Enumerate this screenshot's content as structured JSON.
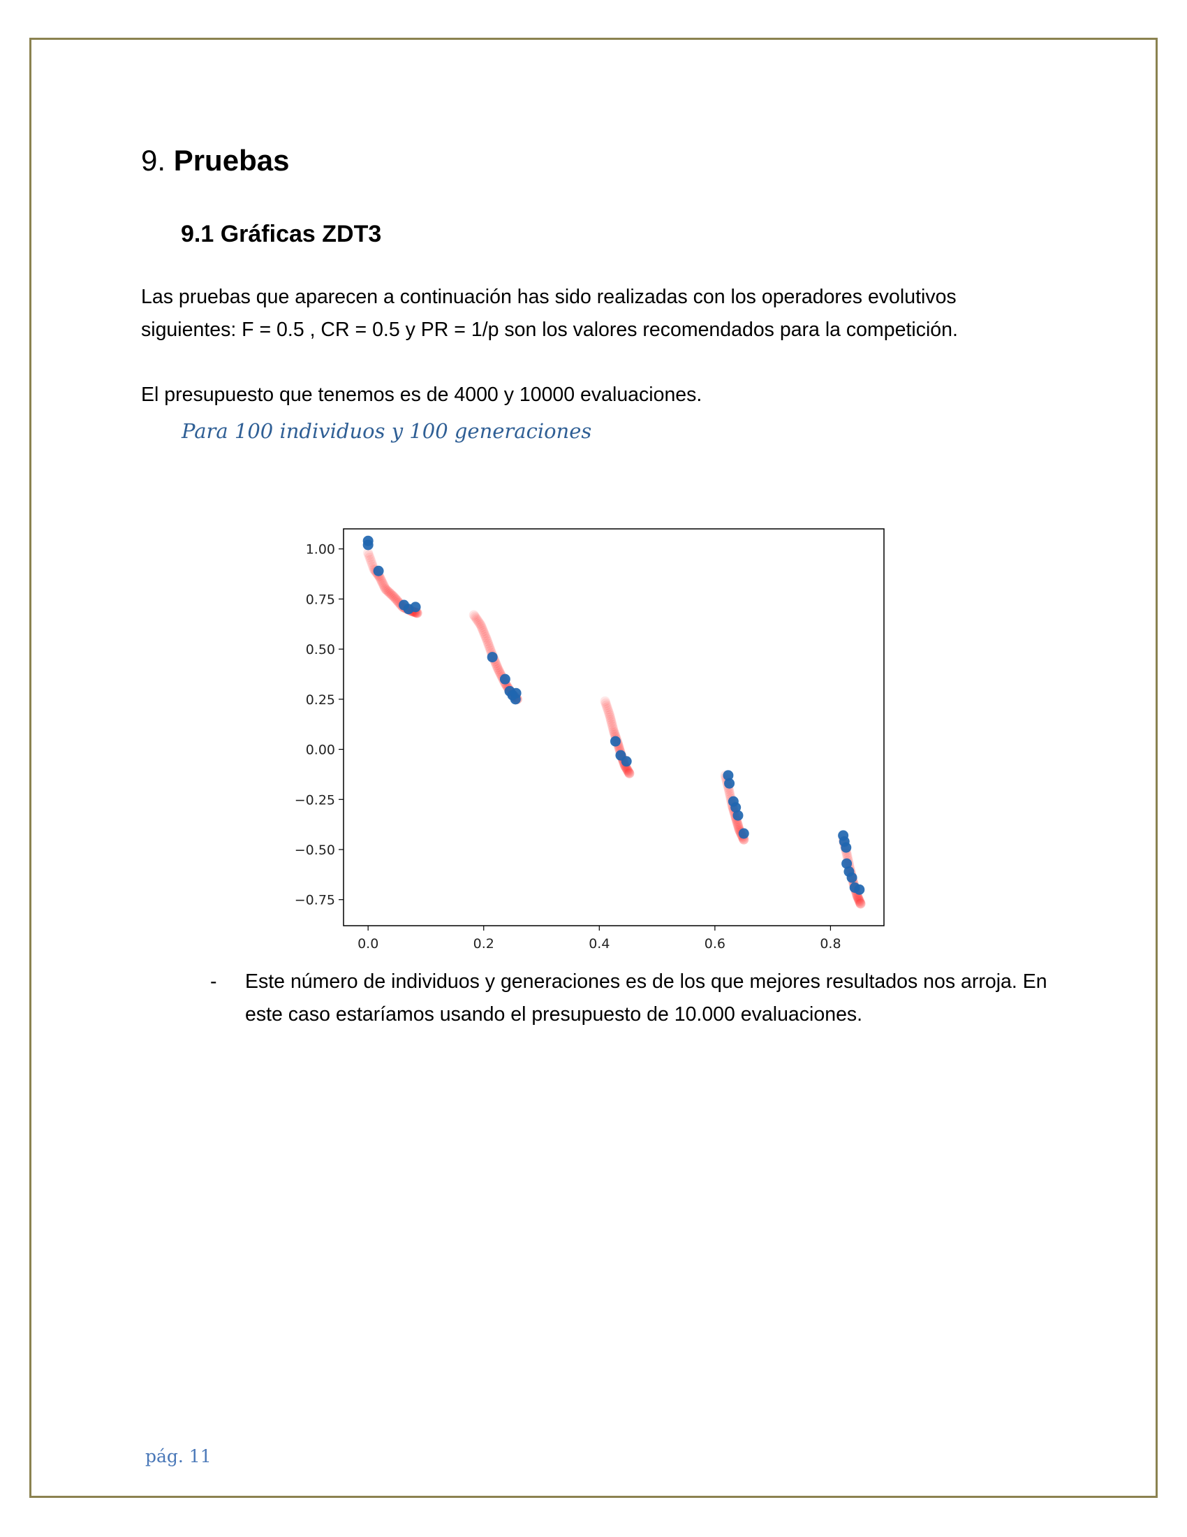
{
  "section": {
    "number": "9.",
    "title": "Pruebas"
  },
  "subsection": {
    "title": "9.1 Gráficas ZDT3"
  },
  "paragraphs": [
    "Las pruebas que aparecen a continuación has sido realizadas con los operadores evolutivos siguientes: F = 0.5 , CR = 0.5 y PR = 1/p son los valores recomendados para la competición.",
    "El presupuesto que tenemos es de 4000 y 10000 evaluaciones."
  ],
  "caption": "Para 100 individuos y 100 generaciones",
  "chart_data": {
    "type": "scatter",
    "title": "",
    "xlabel": "",
    "ylabel": "",
    "xlim": [
      -0.0425,
      0.8925
    ],
    "ylim": [
      -0.88,
      1.1
    ],
    "x_ticks": [
      "0.0",
      "0.2",
      "0.4",
      "0.6",
      "0.8"
    ],
    "y_ticks": [
      "1.00",
      "0.75",
      "0.50",
      "0.25",
      "0.00",
      "−0.25",
      "−0.50",
      "−0.75"
    ],
    "grid": false,
    "series": [
      {
        "color": "#ff2020",
        "style": "translucent-dense-front",
        "segments": [
          [
            [
              0.0,
              0.98
            ],
            [
              0.01,
              0.9
            ],
            [
              0.02,
              0.86
            ],
            [
              0.03,
              0.8
            ],
            [
              0.045,
              0.76
            ],
            [
              0.06,
              0.71
            ],
            [
              0.075,
              0.69
            ],
            [
              0.085,
              0.68
            ]
          ],
          [
            [
              0.183,
              0.67
            ],
            [
              0.195,
              0.62
            ],
            [
              0.205,
              0.55
            ],
            [
              0.215,
              0.47
            ],
            [
              0.225,
              0.4
            ],
            [
              0.237,
              0.33
            ],
            [
              0.248,
              0.28
            ],
            [
              0.258,
              0.25
            ]
          ],
          [
            [
              0.41,
              0.24
            ],
            [
              0.418,
              0.17
            ],
            [
              0.425,
              0.09
            ],
            [
              0.432,
              0.03
            ],
            [
              0.438,
              -0.03
            ],
            [
              0.444,
              -0.08
            ],
            [
              0.452,
              -0.12
            ]
          ],
          [
            [
              0.618,
              -0.13
            ],
            [
              0.624,
              -0.2
            ],
            [
              0.63,
              -0.28
            ],
            [
              0.636,
              -0.34
            ],
            [
              0.642,
              -0.4
            ],
            [
              0.65,
              -0.45
            ]
          ],
          [
            [
              0.822,
              -0.45
            ],
            [
              0.828,
              -0.52
            ],
            [
              0.834,
              -0.6
            ],
            [
              0.84,
              -0.67
            ],
            [
              0.846,
              -0.73
            ],
            [
              0.852,
              -0.77
            ]
          ]
        ]
      },
      {
        "color": "#1f66b0",
        "style": "solid-points",
        "points": [
          [
            0.0,
            1.04
          ],
          [
            0.0,
            1.02
          ],
          [
            0.018,
            0.89
          ],
          [
            0.062,
            0.72
          ],
          [
            0.07,
            0.7
          ],
          [
            0.082,
            0.71
          ],
          [
            0.215,
            0.46
          ],
          [
            0.237,
            0.35
          ],
          [
            0.245,
            0.29
          ],
          [
            0.25,
            0.27
          ],
          [
            0.256,
            0.28
          ],
          [
            0.255,
            0.25
          ],
          [
            0.428,
            0.04
          ],
          [
            0.437,
            -0.03
          ],
          [
            0.447,
            -0.06
          ],
          [
            0.623,
            -0.13
          ],
          [
            0.625,
            -0.17
          ],
          [
            0.632,
            -0.26
          ],
          [
            0.636,
            -0.29
          ],
          [
            0.64,
            -0.33
          ],
          [
            0.65,
            -0.42
          ],
          [
            0.822,
            -0.43
          ],
          [
            0.824,
            -0.46
          ],
          [
            0.827,
            -0.49
          ],
          [
            0.828,
            -0.57
          ],
          [
            0.832,
            -0.61
          ],
          [
            0.837,
            -0.64
          ],
          [
            0.842,
            -0.69
          ],
          [
            0.85,
            -0.7
          ]
        ]
      }
    ]
  },
  "bullet": {
    "marker": "-",
    "text": "Este número de individuos y generaciones es de los que mejores resultados nos arroja. En este caso estaríamos usando el presupuesto de 10.000 evaluaciones."
  },
  "footer": {
    "page_label": "pág. 11"
  }
}
